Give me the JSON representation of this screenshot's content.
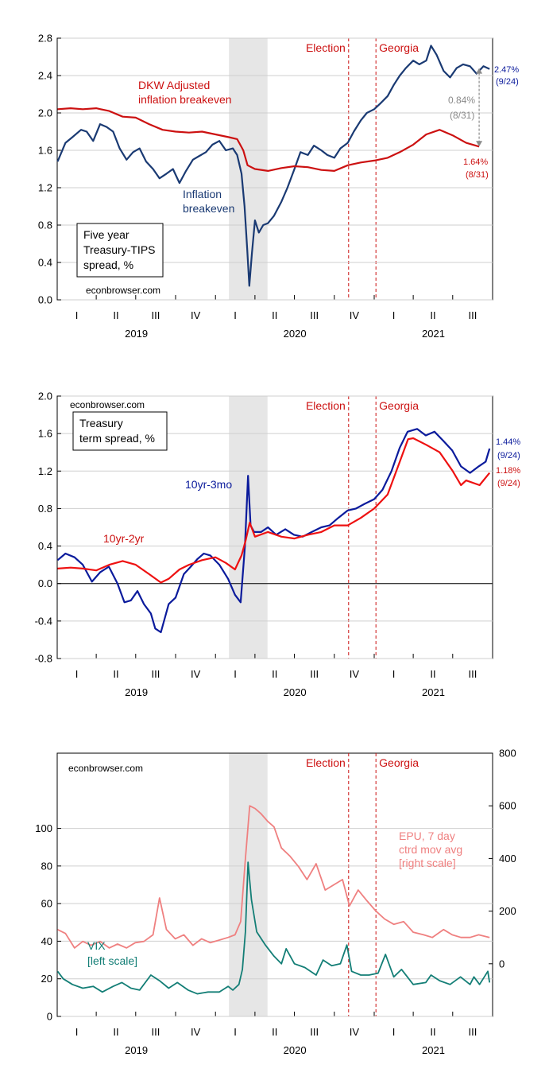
{
  "colors": {
    "navy": "#1a3a73",
    "blue": "#0b1b9c",
    "red": "#cc1111",
    "salmon": "#ef8080",
    "teal": "#137e76",
    "gray": "#8a8a8a",
    "recession": "#e6e6e6",
    "grid": "#cfcfcf"
  },
  "x_axis": {
    "quarters": [
      "I",
      "II",
      "III",
      "IV",
      "I",
      "II",
      "III",
      "IV",
      "I",
      "II",
      "III"
    ],
    "years": [
      "2019",
      "2020",
      "2021"
    ]
  },
  "events": [
    {
      "label": "Election",
      "date": "2020-11-03"
    },
    {
      "label": "Georgia",
      "date": "2021-01-05"
    }
  ],
  "recession": {
    "start": "2020-02-01",
    "end": "2020-04-30"
  },
  "chart_data": [
    {
      "type": "line",
      "ylim": [
        0.0,
        2.8
      ],
      "yticks": [
        "0.0",
        "0.4",
        "0.8",
        "1.2",
        "1.6",
        "2.0",
        "2.4",
        "2.8"
      ],
      "grid": true,
      "textbox": [
        "Five year",
        "Treasury-TIPS",
        "spread, %"
      ],
      "watermark": "econbrowser.com",
      "labels": {
        "dkw": [
          "DKW Adjusted",
          "inflation breakeven"
        ],
        "breakeven": [
          "Inflation",
          "breakeven"
        ]
      },
      "end_labels": {
        "breakeven": [
          "2.47%",
          "(9/24)"
        ],
        "dkw": [
          "1.64%",
          "(8/31)"
        ],
        "gap": [
          "0.84%",
          "(8/31)"
        ]
      },
      "series": [
        {
          "key": "breakeven",
          "x": [
            "2019-01-02",
            "2019-01-20",
            "2019-02-05",
            "2019-02-25",
            "2019-03-10",
            "2019-03-25",
            "2019-04-10",
            "2019-04-25",
            "2019-05-10",
            "2019-05-25",
            "2019-06-10",
            "2019-06-25",
            "2019-07-10",
            "2019-07-25",
            "2019-08-10",
            "2019-08-25",
            "2019-09-10",
            "2019-09-25",
            "2019-10-10",
            "2019-10-25",
            "2019-11-10",
            "2019-11-25",
            "2019-12-10",
            "2019-12-25",
            "2020-01-10",
            "2020-01-25",
            "2020-02-10",
            "2020-02-20",
            "2020-03-01",
            "2020-03-08",
            "2020-03-14",
            "2020-03-19",
            "2020-03-25",
            "2020-04-01",
            "2020-04-10",
            "2020-04-20",
            "2020-05-01",
            "2020-05-15",
            "2020-06-01",
            "2020-06-15",
            "2020-07-01",
            "2020-07-15",
            "2020-08-01",
            "2020-08-15",
            "2020-09-01",
            "2020-09-15",
            "2020-10-01",
            "2020-10-15",
            "2020-11-01",
            "2020-11-15",
            "2020-12-01",
            "2020-12-15",
            "2021-01-01",
            "2021-01-15",
            "2021-02-01",
            "2021-02-15",
            "2021-03-01",
            "2021-03-15",
            "2021-04-01",
            "2021-04-15",
            "2021-05-01",
            "2021-05-12",
            "2021-05-25",
            "2021-06-10",
            "2021-06-25",
            "2021-07-10",
            "2021-07-25",
            "2021-08-10",
            "2021-08-25",
            "2021-09-10",
            "2021-09-24"
          ],
          "y": [
            1.48,
            1.68,
            1.74,
            1.82,
            1.8,
            1.7,
            1.88,
            1.85,
            1.8,
            1.62,
            1.5,
            1.58,
            1.62,
            1.48,
            1.4,
            1.3,
            1.35,
            1.4,
            1.25,
            1.38,
            1.5,
            1.54,
            1.58,
            1.66,
            1.7,
            1.6,
            1.62,
            1.55,
            1.35,
            1.0,
            0.55,
            0.15,
            0.5,
            0.85,
            0.72,
            0.8,
            0.82,
            0.9,
            1.05,
            1.2,
            1.4,
            1.58,
            1.55,
            1.65,
            1.6,
            1.55,
            1.52,
            1.62,
            1.68,
            1.8,
            1.92,
            2.0,
            2.04,
            2.1,
            2.18,
            2.3,
            2.4,
            2.48,
            2.56,
            2.52,
            2.56,
            2.72,
            2.62,
            2.45,
            2.38,
            2.48,
            2.52,
            2.5,
            2.42,
            2.5,
            2.47
          ]
        },
        {
          "key": "dkw",
          "x": [
            "2019-01-02",
            "2019-02-01",
            "2019-03-01",
            "2019-04-01",
            "2019-05-01",
            "2019-06-01",
            "2019-07-01",
            "2019-08-01",
            "2019-09-01",
            "2019-10-01",
            "2019-11-01",
            "2019-12-01",
            "2020-01-01",
            "2020-02-01",
            "2020-02-20",
            "2020-03-05",
            "2020-03-15",
            "2020-04-01",
            "2020-05-01",
            "2020-06-01",
            "2020-07-01",
            "2020-08-01",
            "2020-09-01",
            "2020-10-01",
            "2020-11-01",
            "2020-12-01",
            "2021-01-01",
            "2021-02-01",
            "2021-03-01",
            "2021-04-01",
            "2021-05-01",
            "2021-06-01",
            "2021-07-01",
            "2021-08-01",
            "2021-08-31"
          ],
          "y": [
            2.04,
            2.05,
            2.04,
            2.05,
            2.02,
            1.96,
            1.95,
            1.88,
            1.82,
            1.8,
            1.79,
            1.8,
            1.77,
            1.74,
            1.72,
            1.6,
            1.44,
            1.4,
            1.38,
            1.41,
            1.43,
            1.42,
            1.39,
            1.38,
            1.44,
            1.47,
            1.49,
            1.52,
            1.58,
            1.66,
            1.77,
            1.82,
            1.76,
            1.68,
            1.64
          ]
        }
      ]
    },
    {
      "type": "line",
      "ylim": [
        -0.8,
        2.0
      ],
      "yticks": [
        "-0.8",
        "-0.4",
        "0.0",
        "0.4",
        "0.8",
        "1.2",
        "1.6",
        "2.0"
      ],
      "grid": true,
      "textbox": [
        "Treasury",
        "term spread, %"
      ],
      "watermark": "econbrowser.com",
      "labels": {
        "t10y3m": "10yr-3mo",
        "t10y2y": "10yr-2yr"
      },
      "end_labels": {
        "t10y3m": [
          "1.44%",
          "(9/24)"
        ],
        "t10y2y": [
          "1.18%",
          "(9/24)"
        ]
      },
      "series": [
        {
          "key": "t10y3m",
          "x": [
            "2019-01-02",
            "2019-01-20",
            "2019-02-10",
            "2019-03-01",
            "2019-03-22",
            "2019-04-10",
            "2019-04-30",
            "2019-05-20",
            "2019-06-05",
            "2019-06-20",
            "2019-07-05",
            "2019-07-20",
            "2019-08-05",
            "2019-08-15",
            "2019-08-28",
            "2019-09-15",
            "2019-10-01",
            "2019-10-20",
            "2019-11-05",
            "2019-11-20",
            "2019-12-05",
            "2019-12-20",
            "2020-01-10",
            "2020-01-30",
            "2020-02-15",
            "2020-02-28",
            "2020-03-09",
            "2020-03-16",
            "2020-03-22",
            "2020-03-30",
            "2020-04-15",
            "2020-05-01",
            "2020-05-20",
            "2020-06-10",
            "2020-06-30",
            "2020-07-20",
            "2020-08-10",
            "2020-09-01",
            "2020-09-20",
            "2020-10-10",
            "2020-11-01",
            "2020-11-20",
            "2020-12-10",
            "2021-01-01",
            "2021-01-20",
            "2021-02-10",
            "2021-03-01",
            "2021-03-19",
            "2021-04-10",
            "2021-04-30",
            "2021-05-20",
            "2021-06-10",
            "2021-06-30",
            "2021-07-20",
            "2021-08-10",
            "2021-08-30",
            "2021-09-15",
            "2021-09-24"
          ],
          "y": [
            0.25,
            0.32,
            0.28,
            0.2,
            0.02,
            0.12,
            0.18,
            0.0,
            -0.2,
            -0.18,
            -0.08,
            -0.22,
            -0.32,
            -0.48,
            -0.52,
            -0.22,
            -0.15,
            0.1,
            0.18,
            0.26,
            0.32,
            0.3,
            0.2,
            0.05,
            -0.12,
            -0.2,
            0.4,
            1.15,
            0.62,
            0.55,
            0.55,
            0.6,
            0.52,
            0.58,
            0.52,
            0.5,
            0.55,
            0.6,
            0.62,
            0.7,
            0.78,
            0.8,
            0.85,
            0.9,
            1.0,
            1.2,
            1.45,
            1.62,
            1.65,
            1.58,
            1.62,
            1.52,
            1.42,
            1.25,
            1.18,
            1.25,
            1.3,
            1.44
          ]
        },
        {
          "key": "t10y2y",
          "x": [
            "2019-01-02",
            "2019-02-01",
            "2019-03-01",
            "2019-04-01",
            "2019-05-01",
            "2019-06-01",
            "2019-07-01",
            "2019-08-01",
            "2019-08-28",
            "2019-09-15",
            "2019-10-10",
            "2019-11-01",
            "2019-12-01",
            "2020-01-01",
            "2020-01-25",
            "2020-02-15",
            "2020-03-01",
            "2020-03-10",
            "2020-03-20",
            "2020-04-01",
            "2020-05-01",
            "2020-06-01",
            "2020-07-01",
            "2020-08-01",
            "2020-09-01",
            "2020-10-01",
            "2020-11-01",
            "2020-12-01",
            "2021-01-01",
            "2021-02-01",
            "2021-03-01",
            "2021-03-20",
            "2021-04-01",
            "2021-05-01",
            "2021-06-01",
            "2021-07-01",
            "2021-07-20",
            "2021-08-01",
            "2021-09-01",
            "2021-09-24"
          ],
          "y": [
            0.16,
            0.17,
            0.16,
            0.14,
            0.2,
            0.24,
            0.2,
            0.1,
            0.01,
            0.05,
            0.15,
            0.2,
            0.25,
            0.28,
            0.22,
            0.15,
            0.3,
            0.45,
            0.65,
            0.5,
            0.55,
            0.5,
            0.48,
            0.52,
            0.55,
            0.62,
            0.62,
            0.7,
            0.8,
            0.95,
            1.3,
            1.54,
            1.55,
            1.48,
            1.4,
            1.2,
            1.05,
            1.1,
            1.05,
            1.18
          ]
        }
      ]
    },
    {
      "type": "line",
      "ylim": [
        0,
        140
      ],
      "yticks": [
        "0",
        "20",
        "40",
        "60",
        "80",
        "100"
      ],
      "y2lim": [
        -200,
        800
      ],
      "y2ticks": [
        "0",
        "200",
        "400",
        "600",
        "800"
      ],
      "grid": true,
      "watermark": "econbrowser.com",
      "labels": {
        "epu": [
          "EPU, 7 day",
          "ctrd mov avg",
          "[right scale]"
        ],
        "vix": [
          "VIX",
          "[left scale]"
        ]
      },
      "series": [
        {
          "key": "epu",
          "axis": "right",
          "x": [
            "2019-01-02",
            "2019-01-20",
            "2019-02-10",
            "2019-03-01",
            "2019-03-20",
            "2019-04-10",
            "2019-05-01",
            "2019-05-20",
            "2019-06-10",
            "2019-06-30",
            "2019-07-20",
            "2019-08-10",
            "2019-08-25",
            "2019-09-10",
            "2019-09-30",
            "2019-10-20",
            "2019-11-10",
            "2019-11-30",
            "2019-12-20",
            "2020-01-10",
            "2020-01-30",
            "2020-02-15",
            "2020-02-28",
            "2020-03-10",
            "2020-03-20",
            "2020-04-01",
            "2020-04-15",
            "2020-05-01",
            "2020-05-15",
            "2020-06-01",
            "2020-06-20",
            "2020-07-10",
            "2020-07-30",
            "2020-08-20",
            "2020-09-10",
            "2020-09-30",
            "2020-10-20",
            "2020-11-05",
            "2020-11-25",
            "2020-12-15",
            "2021-01-05",
            "2021-01-25",
            "2021-02-15",
            "2021-03-10",
            "2021-04-01",
            "2021-04-25",
            "2021-05-15",
            "2021-06-10",
            "2021-06-30",
            "2021-07-20",
            "2021-08-10",
            "2021-08-30",
            "2021-09-24"
          ],
          "y": [
            130,
            115,
            60,
            85,
            70,
            85,
            60,
            75,
            60,
            80,
            85,
            110,
            250,
            130,
            95,
            110,
            70,
            95,
            80,
            90,
            100,
            110,
            160,
            400,
            600,
            590,
            570,
            540,
            520,
            440,
            410,
            370,
            320,
            380,
            280,
            300,
            320,
            220,
            280,
            240,
            200,
            170,
            150,
            160,
            120,
            110,
            100,
            130,
            110,
            100,
            100,
            110,
            100
          ]
        },
        {
          "key": "vix",
          "axis": "left",
          "x": [
            "2019-01-02",
            "2019-01-15",
            "2019-02-05",
            "2019-03-01",
            "2019-03-25",
            "2019-04-15",
            "2019-05-10",
            "2019-05-30",
            "2019-06-20",
            "2019-07-10",
            "2019-08-05",
            "2019-08-25",
            "2019-09-15",
            "2019-10-05",
            "2019-10-30",
            "2019-11-20",
            "2019-12-15",
            "2020-01-10",
            "2020-01-30",
            "2020-02-10",
            "2020-02-24",
            "2020-03-03",
            "2020-03-10",
            "2020-03-16",
            "2020-03-24",
            "2020-04-05",
            "2020-04-25",
            "2020-05-15",
            "2020-06-01",
            "2020-06-12",
            "2020-07-01",
            "2020-07-25",
            "2020-08-20",
            "2020-09-05",
            "2020-09-25",
            "2020-10-15",
            "2020-10-30",
            "2020-11-10",
            "2020-12-01",
            "2020-12-20",
            "2021-01-10",
            "2021-01-27",
            "2021-02-15",
            "2021-03-05",
            "2021-04-01",
            "2021-04-30",
            "2021-05-12",
            "2021-06-01",
            "2021-06-25",
            "2021-07-19",
            "2021-08-10",
            "2021-08-19",
            "2021-09-01",
            "2021-09-20",
            "2021-09-24"
          ],
          "y": [
            24,
            20,
            17,
            15,
            16,
            13,
            16,
            18,
            15,
            14,
            22,
            19,
            15,
            18,
            14,
            12,
            13,
            13,
            16,
            14,
            17,
            25,
            45,
            82,
            62,
            45,
            38,
            32,
            28,
            36,
            28,
            26,
            22,
            30,
            27,
            28,
            38,
            24,
            22,
            22,
            23,
            33,
            21,
            25,
            17,
            18,
            22,
            19,
            17,
            21,
            17,
            21,
            17,
            24,
            18
          ]
        }
      ]
    }
  ]
}
